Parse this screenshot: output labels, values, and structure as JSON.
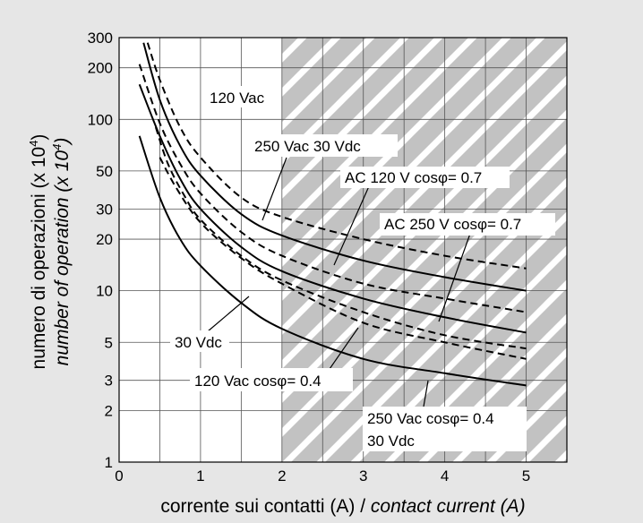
{
  "chart_data": {
    "type": "line",
    "xlabel_it": "corrente sui contatti (A) / ",
    "xlabel_en": "contact current (A)",
    "ylabel_it": "numero di operazioni (x 10",
    "ylabel_en": "number of operation (x 10",
    "ylabel_exp": "4",
    "ylabel_close": ")",
    "xlim": [
      0,
      5.5
    ],
    "ylim": [
      1,
      300
    ],
    "y_scale": "log",
    "grid": true,
    "x_ticks": [
      "0",
      "1",
      "2",
      "3",
      "4",
      "5"
    ],
    "x_tick_values": [
      0,
      1,
      2,
      3,
      4,
      5
    ],
    "y_ticks": [
      "1",
      "2",
      "3",
      "5",
      "10",
      "20",
      "30",
      "50",
      "100",
      "200",
      "300"
    ],
    "y_tick_values": [
      1,
      2,
      3,
      5,
      10,
      20,
      30,
      50,
      100,
      200,
      300
    ],
    "shaded_region": {
      "x_from": 2,
      "x_to": 5.5
    },
    "series": [
      {
        "name": "120 Vac",
        "style": "dashed",
        "x": [
          0.35,
          0.5,
          0.75,
          1.0,
          1.5,
          2.0,
          3.0,
          4.0,
          5.0
        ],
        "y": [
          280,
          170,
          90,
          60,
          35,
          27,
          20,
          16,
          13.5
        ]
      },
      {
        "name": "250 Vac 30 Vdc",
        "style": "solid",
        "x": [
          0.3,
          0.5,
          0.75,
          1.0,
          1.5,
          2.0,
          3.0,
          4.0,
          5.0
        ],
        "y": [
          280,
          130,
          70,
          47,
          28,
          21,
          15,
          12,
          10
        ]
      },
      {
        "name": "AC 120 V cosφ= 0.7",
        "style": "dashed",
        "x": [
          0.25,
          0.5,
          0.75,
          1.0,
          1.5,
          2.0,
          3.0,
          4.0,
          5.0
        ],
        "y": [
          210,
          95,
          55,
          37,
          22,
          16,
          11,
          9,
          7.5
        ]
      },
      {
        "name": "AC 250 V cosφ= 0.7",
        "style": "solid",
        "x": [
          0.25,
          0.5,
          0.75,
          1.0,
          1.5,
          2.0,
          3.0,
          4.0,
          5.0
        ],
        "y": [
          160,
          80,
          45,
          30,
          18,
          13,
          9,
          7,
          5.7
        ]
      },
      {
        "name": "30 Vdc",
        "style": "dashed",
        "x": [
          0.45,
          0.6,
          0.8,
          1.0,
          1.5,
          2.0,
          3.0,
          4.0,
          5.0
        ],
        "y": [
          90,
          55,
          36,
          26,
          16,
          11.5,
          7.5,
          5.5,
          4.6
        ]
      },
      {
        "name": "120 Vac cosφ= 0.4",
        "style": "dashed",
        "x": [
          0.5,
          0.7,
          1.0,
          1.5,
          2.0,
          3.0,
          4.0,
          5.0
        ],
        "y": [
          60,
          40,
          25,
          15.5,
          11,
          6.5,
          5,
          4
        ]
      },
      {
        "name": "250 Vac cosφ= 0.4 30 Vdc",
        "style": "solid",
        "x": [
          0.25,
          0.5,
          0.75,
          1.0,
          1.5,
          2.0,
          3.0,
          4.0,
          5.0
        ],
        "y": [
          80,
          35,
          20,
          14,
          8.5,
          6,
          4,
          3.3,
          2.8
        ]
      }
    ],
    "annotations": [
      {
        "text": "120 Vac"
      },
      {
        "text": "250 Vac 30 Vdc"
      },
      {
        "text": "AC 120 V cosφ= 0.7"
      },
      {
        "text": "AC 250 V cosφ= 0.7"
      },
      {
        "text": "30 Vdc"
      },
      {
        "text": "120 Vac cosφ= 0.4"
      },
      {
        "text": "250 Vac cosφ= 0.4"
      },
      {
        "text": "30 Vdc"
      }
    ]
  }
}
